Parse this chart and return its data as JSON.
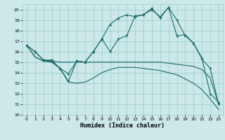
{
  "xlabel": "Humidex (Indice chaleur)",
  "bg_color": "#cce8e8",
  "grid_color": "#99cccc",
  "line_color": "#1a6b6b",
  "xlim": [
    -0.5,
    23.5
  ],
  "ylim": [
    10,
    20.5
  ],
  "yticks": [
    10,
    11,
    12,
    13,
    14,
    15,
    16,
    17,
    18,
    19,
    20
  ],
  "xticks": [
    0,
    1,
    2,
    3,
    4,
    5,
    6,
    7,
    8,
    9,
    10,
    11,
    12,
    13,
    14,
    15,
    16,
    17,
    18,
    19,
    20,
    21,
    22,
    23
  ],
  "line1_x": [
    0,
    1,
    2,
    3,
    4,
    5,
    6,
    7,
    8,
    9,
    10,
    11,
    12,
    13,
    14,
    15,
    16,
    17,
    18,
    19,
    20,
    21,
    22,
    23
  ],
  "line1_y": [
    16.6,
    16.0,
    15.2,
    15.1,
    14.4,
    13.9,
    15.1,
    15.0,
    16.0,
    17.2,
    18.6,
    19.2,
    19.5,
    19.3,
    19.5,
    20.0,
    19.3,
    20.2,
    17.5,
    17.6,
    16.8,
    15.4,
    12.0,
    11.2
  ],
  "line2_x": [
    0,
    1,
    2,
    3,
    4,
    5,
    6,
    7,
    8,
    9,
    10,
    11,
    12,
    13,
    14,
    15,
    16,
    17,
    18,
    19,
    20,
    21,
    22,
    23
  ],
  "line2_y": [
    16.6,
    16.0,
    15.2,
    15.2,
    14.4,
    13.2,
    15.1,
    15.0,
    16.0,
    17.2,
    16.0,
    17.2,
    17.5,
    19.4,
    19.5,
    20.1,
    19.2,
    20.2,
    19.0,
    17.5,
    16.8,
    15.3,
    14.4,
    11.0
  ],
  "line3_x": [
    0,
    1,
    2,
    3,
    4,
    5,
    6,
    7,
    8,
    9,
    10,
    11,
    12,
    13,
    14,
    15,
    16,
    17,
    18,
    19,
    20,
    21,
    22,
    23
  ],
  "line3_y": [
    16.6,
    15.5,
    15.1,
    15.1,
    15.0,
    15.0,
    15.0,
    15.0,
    15.0,
    15.0,
    15.0,
    15.0,
    15.0,
    15.0,
    15.0,
    15.0,
    15.0,
    14.9,
    14.8,
    14.7,
    14.6,
    14.3,
    13.5,
    11.0
  ],
  "line4_x": [
    0,
    1,
    2,
    3,
    4,
    5,
    6,
    7,
    8,
    9,
    10,
    11,
    12,
    13,
    14,
    15,
    16,
    17,
    18,
    19,
    20,
    21,
    22,
    23
  ],
  "line4_y": [
    16.6,
    15.5,
    15.1,
    15.0,
    14.4,
    13.1,
    13.0,
    13.1,
    13.5,
    14.0,
    14.3,
    14.5,
    14.5,
    14.5,
    14.4,
    14.3,
    14.2,
    14.0,
    13.8,
    13.4,
    13.0,
    12.4,
    11.5,
    10.5
  ]
}
